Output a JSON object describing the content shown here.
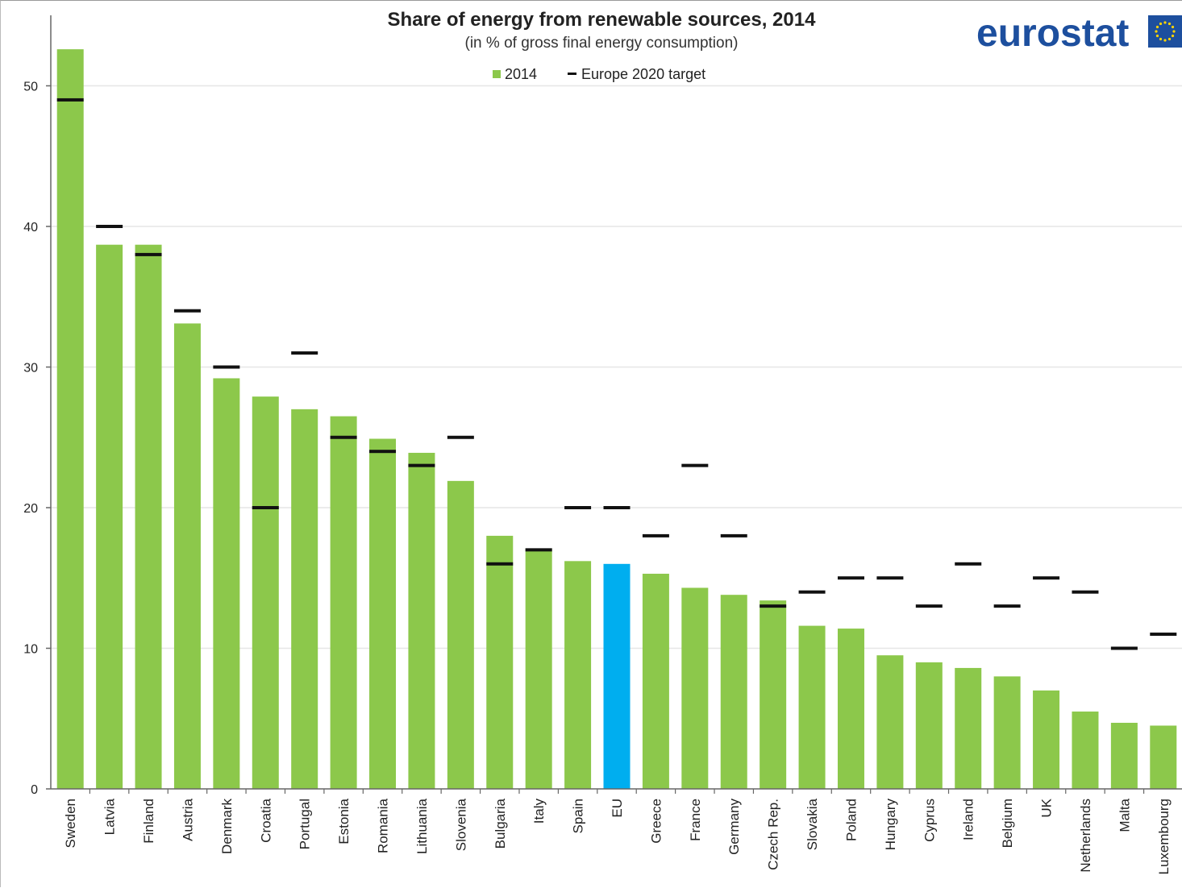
{
  "colors": {
    "bar": "#8cc84b",
    "highlight": "#00aeef",
    "target": "#111111",
    "grid": "#e6e6e6",
    "logo": "#1d4f9e"
  },
  "logo": {
    "text": "eurostat",
    "icon": "eu-flag-icon"
  },
  "chart_data": {
    "type": "bar",
    "title": "Share of energy from renewable sources, 2014",
    "subtitle": "(in % of gross final energy consumption)",
    "legend": {
      "placement": "top",
      "series_label": "2014",
      "target_label": "Europe 2020 target"
    },
    "ylim": [
      0,
      55
    ],
    "yticks": [
      0,
      10,
      20,
      30,
      40,
      50
    ],
    "grid": true,
    "highlight_category": "EU",
    "categories": [
      "Sweden",
      "Latvia",
      "Finland",
      "Austria",
      "Denmark",
      "Croatia",
      "Portugal",
      "Estonia",
      "Romania",
      "Lithuania",
      "Slovenia",
      "Bulgaria",
      "Italy",
      "Spain",
      "EU",
      "Greece",
      "France",
      "Germany",
      "Czech Rep.",
      "Slovakia",
      "Poland",
      "Hungary",
      "Cyprus",
      "Ireland",
      "Belgium",
      "UK",
      "Netherlands",
      "Malta",
      "Luxembourg"
    ],
    "series": [
      {
        "name": "2014",
        "values": [
          52.6,
          38.7,
          38.7,
          33.1,
          29.2,
          27.9,
          27.0,
          26.5,
          24.9,
          23.9,
          21.9,
          18.0,
          17.1,
          16.2,
          16.0,
          15.3,
          14.3,
          13.8,
          13.4,
          11.6,
          11.4,
          9.5,
          9.0,
          8.6,
          8.0,
          7.0,
          5.5,
          4.7,
          4.5
        ]
      },
      {
        "name": "Europe 2020 target",
        "values": [
          49,
          40,
          38,
          34,
          30,
          20,
          31,
          25,
          24,
          23,
          25,
          16,
          17,
          20,
          20,
          18,
          23,
          18,
          13,
          14,
          15,
          15,
          13,
          16,
          13,
          15,
          14,
          10,
          11
        ]
      }
    ]
  }
}
